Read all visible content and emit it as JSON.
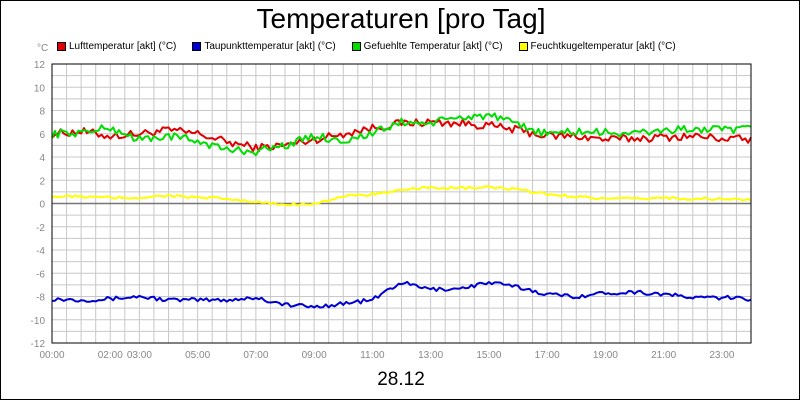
{
  "chart_data": {
    "type": "line",
    "title": "Temperaturen [pro Tag]",
    "ylabel": "°C",
    "xlabel": "28.12",
    "ylim": [
      -12,
      12
    ],
    "yticks": [
      12,
      10,
      8,
      6,
      4,
      2,
      0,
      -2,
      -4,
      -6,
      -8,
      -10,
      -12
    ],
    "xlim": [
      0,
      24
    ],
    "xticks": [
      {
        "pos": 0,
        "label": "00:00"
      },
      {
        "pos": 2,
        "label": "02:00"
      },
      {
        "pos": 3,
        "label": "03:00"
      },
      {
        "pos": 5,
        "label": "05:00"
      },
      {
        "pos": 7,
        "label": "07:00"
      },
      {
        "pos": 9,
        "label": "09:00"
      },
      {
        "pos": 11,
        "label": "11:00"
      },
      {
        "pos": 13,
        "label": "13:00"
      },
      {
        "pos": 15,
        "label": "15:00"
      },
      {
        "pos": 17,
        "label": "17:00"
      },
      {
        "pos": 19,
        "label": "19:00"
      },
      {
        "pos": 21,
        "label": "21:00"
      },
      {
        "pos": 23,
        "label": "23:00"
      }
    ],
    "grid": true,
    "legend_position": "top",
    "series": [
      {
        "name": "Lufttemperatur [akt] (°C)",
        "color": "#e00000",
        "x": [
          0,
          1,
          2,
          3,
          4,
          5,
          6,
          7,
          8,
          9,
          10,
          11,
          12,
          13,
          14,
          15,
          16,
          17,
          18,
          19,
          20,
          21,
          22,
          23,
          24
        ],
        "y": [
          6.0,
          6.2,
          5.8,
          6.0,
          6.3,
          6.0,
          5.3,
          4.8,
          5.0,
          5.5,
          6.0,
          6.5,
          6.9,
          7.0,
          6.9,
          6.7,
          6.3,
          5.8,
          5.8,
          5.5,
          5.6,
          5.7,
          5.8,
          5.6,
          5.5
        ]
      },
      {
        "name": "Taupunkttemperatur [akt] (°C)",
        "color": "#0000d0",
        "x": [
          0,
          1,
          2,
          3,
          4,
          5,
          6,
          7,
          8,
          9,
          10,
          11,
          11.5,
          12,
          13,
          14,
          15,
          16,
          17,
          18,
          19,
          20,
          21,
          22,
          23,
          24
        ],
        "y": [
          -8.2,
          -8.3,
          -8.2,
          -8.0,
          -8.3,
          -8.3,
          -8.3,
          -8.1,
          -8.7,
          -8.9,
          -8.6,
          -8.3,
          -7.5,
          -6.8,
          -7.4,
          -7.3,
          -6.8,
          -7.2,
          -7.8,
          -8.0,
          -7.7,
          -7.6,
          -7.8,
          -8.1,
          -8.1,
          -8.2
        ]
      },
      {
        "name": "Gefuehlte Temperatur [akt] (°C)",
        "color": "#00dd00",
        "x": [
          0,
          1,
          2,
          3,
          4,
          5,
          6,
          7,
          8,
          9,
          10,
          11,
          12,
          13,
          14,
          15,
          16,
          17,
          18,
          19,
          20,
          21,
          22,
          23,
          24
        ],
        "y": [
          6.0,
          6.1,
          6.5,
          5.5,
          5.8,
          5.4,
          4.6,
          4.5,
          5.0,
          5.8,
          5.4,
          6.0,
          7.0,
          6.9,
          7.4,
          7.6,
          6.7,
          6.0,
          6.2,
          6.1,
          6.0,
          6.3,
          6.4,
          6.3,
          6.4
        ]
      },
      {
        "name": "Feuchtkugeltemperatur [akt] (°C)",
        "color": "#ffff00",
        "x": [
          0,
          1,
          2,
          3,
          4,
          5,
          6,
          7,
          8,
          9,
          10,
          11,
          12,
          13,
          14,
          15,
          16,
          17,
          18,
          19,
          20,
          21,
          22,
          23,
          24
        ],
        "y": [
          0.6,
          0.6,
          0.5,
          0.5,
          0.7,
          0.5,
          0.4,
          0.1,
          -0.1,
          0.0,
          0.6,
          0.8,
          1.1,
          1.4,
          1.3,
          1.4,
          1.2,
          0.8,
          0.6,
          0.4,
          0.4,
          0.5,
          0.4,
          0.4,
          0.3
        ]
      }
    ]
  }
}
